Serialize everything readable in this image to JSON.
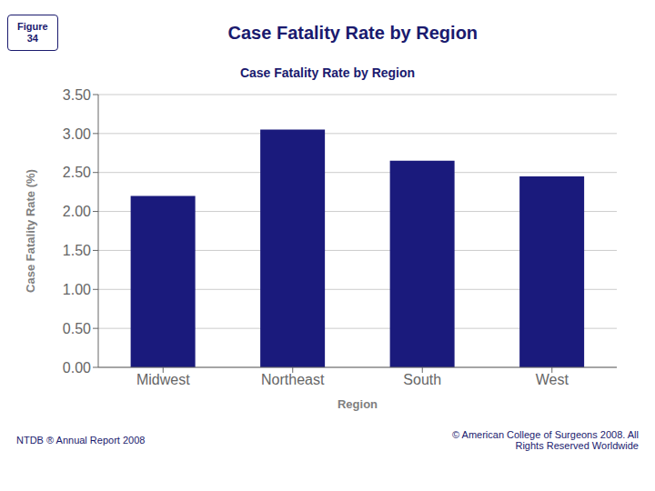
{
  "chart_data": {
    "type": "bar",
    "title": "Case Fatality Rate by Region",
    "x_label": "Region",
    "y_label": "Case Fatality Rate (%)",
    "categories": [
      "Midwest",
      "Northeast",
      "South",
      "West"
    ],
    "values": [
      2.2,
      3.05,
      2.65,
      2.45
    ],
    "color": "#1a1a7c",
    "ylim": [
      0,
      3.5
    ],
    "yticks": [
      {
        "value": 0,
        "label": "0.00"
      },
      {
        "value": 0.5,
        "label": "0.50"
      },
      {
        "value": 1,
        "label": "1.00"
      },
      {
        "value": 1.5,
        "label": "1.50"
      },
      {
        "value": 2,
        "label": "2.00"
      },
      {
        "value": 2.5,
        "label": "2.50"
      },
      {
        "value": 3,
        "label": "3.00"
      },
      {
        "value": 3.5,
        "label": "3.50"
      }
    ],
    "grid": true,
    "annotations": [
      "Case Fatality Rate by Region",
      "Figure\n34",
      "NTDB ® Annual Report 2008",
      "© American College of Surgeons 2008.  All\nRights Reserved Worldwide"
    ]
  }
}
